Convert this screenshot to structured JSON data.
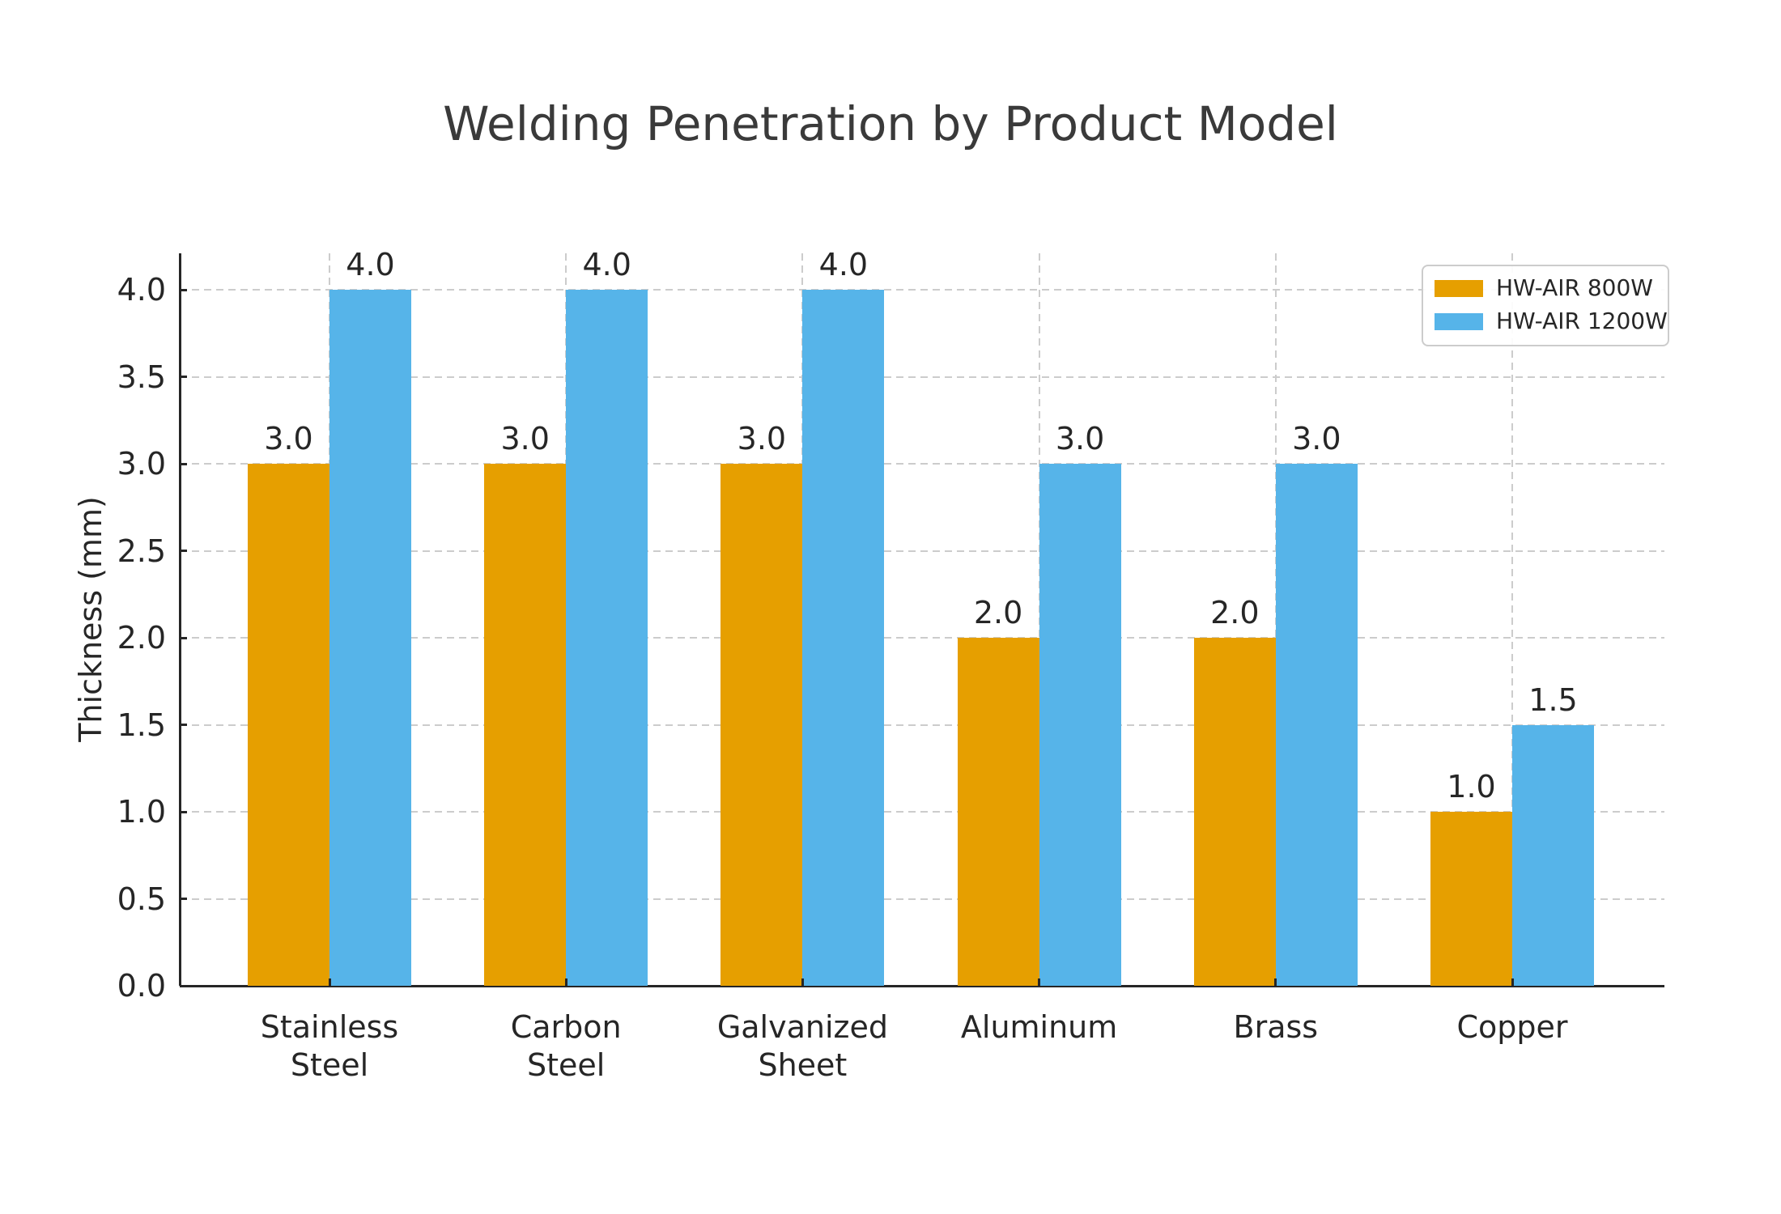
{
  "chart_data": {
    "type": "bar",
    "title": "Welding Penetration by Product Model",
    "ylabel": "Thickness (mm)",
    "xlabel": "",
    "categories": [
      "Stainless\nSteel",
      "Carbon\nSteel",
      "Galvanized\nSheet",
      "Aluminum",
      "Brass",
      "Copper"
    ],
    "series": [
      {
        "name": "HW-AIR 800W",
        "color": "#E69F00",
        "values": [
          3.0,
          3.0,
          3.0,
          2.0,
          2.0,
          1.0
        ],
        "labels": [
          "3.0",
          "3.0",
          "3.0",
          "2.0",
          "2.0",
          "1.0"
        ]
      },
      {
        "name": "HW-AIR 1200W",
        "color": "#56B4E9",
        "values": [
          4.0,
          4.0,
          4.0,
          3.0,
          3.0,
          1.5
        ],
        "labels": [
          "4.0",
          "4.0",
          "4.0",
          "3.0",
          "3.0",
          "1.5"
        ]
      }
    ],
    "yticks": {
      "values": [
        0,
        0.5,
        1,
        1.5,
        2,
        2.5,
        3,
        3.5,
        4
      ],
      "labels": [
        "0.0",
        "0.5",
        "1.0",
        "1.5",
        "2.0",
        "2.5",
        "3.0",
        "3.5",
        "4.0"
      ]
    },
    "ylim": [
      0,
      4.21
    ],
    "grid": {
      "on": true,
      "style": "dashed",
      "horizontal": true,
      "vertical": true,
      "color": "#cccccc"
    },
    "legend": {
      "position": "upper-right"
    },
    "colors": {
      "axis": "#262626",
      "text": "#262626",
      "title": "#3a3a3a",
      "background": "#ffffff"
    }
  }
}
